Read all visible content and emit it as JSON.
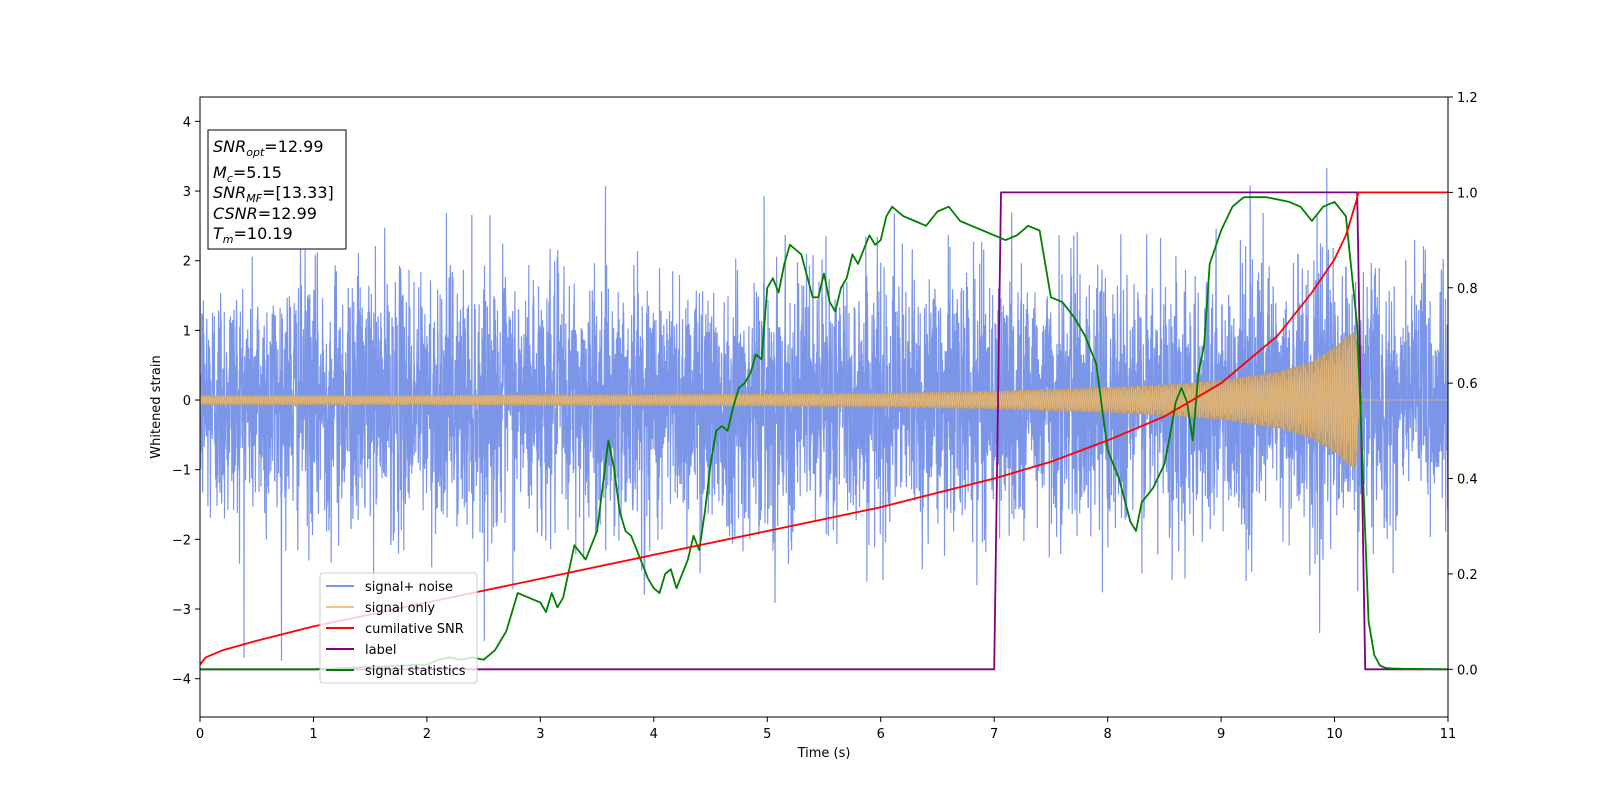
{
  "chart_data": {
    "type": "line",
    "xlabel": "Time (s)",
    "ylabel": "Whitened strain",
    "xlim": [
      0,
      11
    ],
    "ylim": [
      -4.55,
      4.35
    ],
    "y2lim": [
      -0.1,
      1.2
    ],
    "x_ticks": [
      "0",
      "1",
      "2",
      "3",
      "4",
      "5",
      "6",
      "7",
      "8",
      "9",
      "10",
      "11"
    ],
    "y_ticks": [
      "4",
      "3",
      "2",
      "1",
      "0",
      "−1",
      "−2",
      "−3",
      "−4"
    ],
    "y2_ticks": [
      "1.2",
      "1.0",
      "0.8",
      "0.6",
      "0.4",
      "0.2",
      "0.0"
    ],
    "grid": false,
    "legend_position": "lower-left",
    "info_box": {
      "snr_opt": {
        "main": "SNR",
        "sub": "opt",
        "value": "=12.99"
      },
      "mc": {
        "main": "M",
        "sub": "c",
        "value": "=5.15"
      },
      "snr_mf": {
        "main": "SNR",
        "sub": "MF",
        "value": "=[13.33]"
      },
      "csnr": {
        "main": "CSNR",
        "value": "=12.99"
      },
      "tm": {
        "main": "T",
        "sub": "m",
        "value": "=10.19"
      }
    },
    "series": [
      {
        "name": "signal+ noise",
        "color": "#7b95e8",
        "axis": "left",
        "kind": "noise",
        "sigma": 0.9,
        "approx_range": [
          -4.2,
          3.95
        ]
      },
      {
        "name": "signal only",
        "color": "#f5c27a",
        "fill_color": "#bc9c74",
        "axis": "left",
        "kind": "chirp",
        "merger_time": 10.19,
        "amplitude_envelope": {
          "x": [
            0,
            1,
            2,
            3,
            4,
            5,
            6,
            7,
            8,
            8.5,
            9,
            9.5,
            9.8,
            10.0,
            10.1,
            10.19,
            10.21,
            10.25,
            11
          ],
          "y": [
            0.07,
            0.07,
            0.07,
            0.08,
            0.08,
            0.09,
            0.1,
            0.13,
            0.18,
            0.22,
            0.28,
            0.4,
            0.55,
            0.75,
            0.9,
            1.0,
            0.3,
            0.0,
            0.0
          ]
        }
      },
      {
        "name": "cumilative SNR",
        "color": "#ff0000",
        "axis": "right",
        "x": [
          0,
          0.05,
          0.2,
          0.5,
          1,
          1.5,
          2,
          2.5,
          3,
          3.5,
          4,
          4.5,
          5,
          5.5,
          6,
          6.5,
          7,
          7.5,
          8,
          8.5,
          9,
          9.5,
          9.8,
          10.0,
          10.1,
          10.19,
          10.21,
          11
        ],
        "y": [
          0.01,
          0.025,
          0.04,
          0.06,
          0.09,
          0.115,
          0.14,
          0.165,
          0.19,
          0.215,
          0.24,
          0.265,
          0.29,
          0.315,
          0.34,
          0.37,
          0.4,
          0.435,
          0.48,
          0.53,
          0.6,
          0.7,
          0.79,
          0.86,
          0.91,
          0.98,
          1.0,
          1.0
        ]
      },
      {
        "name": "label",
        "color": "#800080",
        "axis": "right",
        "x": [
          0,
          7.0,
          7.06,
          10.2,
          10.27,
          11
        ],
        "y": [
          0,
          0,
          1,
          1,
          0,
          0
        ]
      },
      {
        "name": "signal statistics",
        "color": "#008000",
        "axis": "right",
        "x": [
          0,
          1.0,
          2.0,
          2.1,
          2.2,
          2.3,
          2.4,
          2.5,
          2.6,
          2.7,
          2.8,
          2.9,
          3.0,
          3.05,
          3.1,
          3.15,
          3.2,
          3.3,
          3.4,
          3.5,
          3.6,
          3.65,
          3.7,
          3.75,
          3.8,
          3.85,
          3.9,
          3.95,
          4.0,
          4.05,
          4.1,
          4.15,
          4.2,
          4.25,
          4.3,
          4.35,
          4.4,
          4.45,
          4.5,
          4.55,
          4.6,
          4.65,
          4.7,
          4.75,
          4.8,
          4.85,
          4.9,
          4.95,
          5.0,
          5.05,
          5.1,
          5.15,
          5.2,
          5.3,
          5.4,
          5.45,
          5.5,
          5.55,
          5.6,
          5.65,
          5.7,
          5.75,
          5.8,
          5.85,
          5.9,
          5.95,
          6.0,
          6.05,
          6.1,
          6.15,
          6.2,
          6.3,
          6.4,
          6.5,
          6.6,
          6.7,
          6.8,
          6.9,
          7.0,
          7.1,
          7.2,
          7.3,
          7.4,
          7.5,
          7.6,
          7.7,
          7.8,
          7.9,
          8.0,
          8.1,
          8.2,
          8.25,
          8.3,
          8.4,
          8.5,
          8.55,
          8.6,
          8.65,
          8.7,
          8.75,
          8.8,
          8.85,
          8.9,
          9.0,
          9.1,
          9.2,
          9.3,
          9.4,
          9.5,
          9.6,
          9.7,
          9.8,
          9.9,
          10.0,
          10.1,
          10.2,
          10.3,
          10.35,
          10.4,
          10.45,
          10.5,
          10.6,
          11
        ],
        "y": [
          0.0,
          0.0,
          0.01,
          0.02,
          0.025,
          0.02,
          0.025,
          0.02,
          0.04,
          0.08,
          0.16,
          0.15,
          0.14,
          0.12,
          0.16,
          0.13,
          0.15,
          0.26,
          0.23,
          0.29,
          0.48,
          0.42,
          0.33,
          0.29,
          0.28,
          0.25,
          0.22,
          0.19,
          0.17,
          0.16,
          0.2,
          0.21,
          0.17,
          0.2,
          0.23,
          0.28,
          0.25,
          0.33,
          0.43,
          0.5,
          0.51,
          0.5,
          0.55,
          0.59,
          0.6,
          0.62,
          0.66,
          0.65,
          0.8,
          0.82,
          0.79,
          0.85,
          0.89,
          0.87,
          0.78,
          0.78,
          0.83,
          0.77,
          0.75,
          0.8,
          0.82,
          0.87,
          0.85,
          0.88,
          0.91,
          0.89,
          0.9,
          0.95,
          0.97,
          0.96,
          0.95,
          0.94,
          0.93,
          0.96,
          0.97,
          0.94,
          0.93,
          0.92,
          0.91,
          0.9,
          0.91,
          0.93,
          0.92,
          0.78,
          0.77,
          0.74,
          0.7,
          0.64,
          0.46,
          0.4,
          0.31,
          0.29,
          0.35,
          0.38,
          0.43,
          0.49,
          0.56,
          0.59,
          0.56,
          0.48,
          0.62,
          0.68,
          0.85,
          0.92,
          0.97,
          0.99,
          0.99,
          0.99,
          0.985,
          0.98,
          0.97,
          0.94,
          0.97,
          0.98,
          0.95,
          0.72,
          0.1,
          0.03,
          0.008,
          0.003,
          0.002,
          0.001,
          0.0
        ]
      }
    ]
  }
}
